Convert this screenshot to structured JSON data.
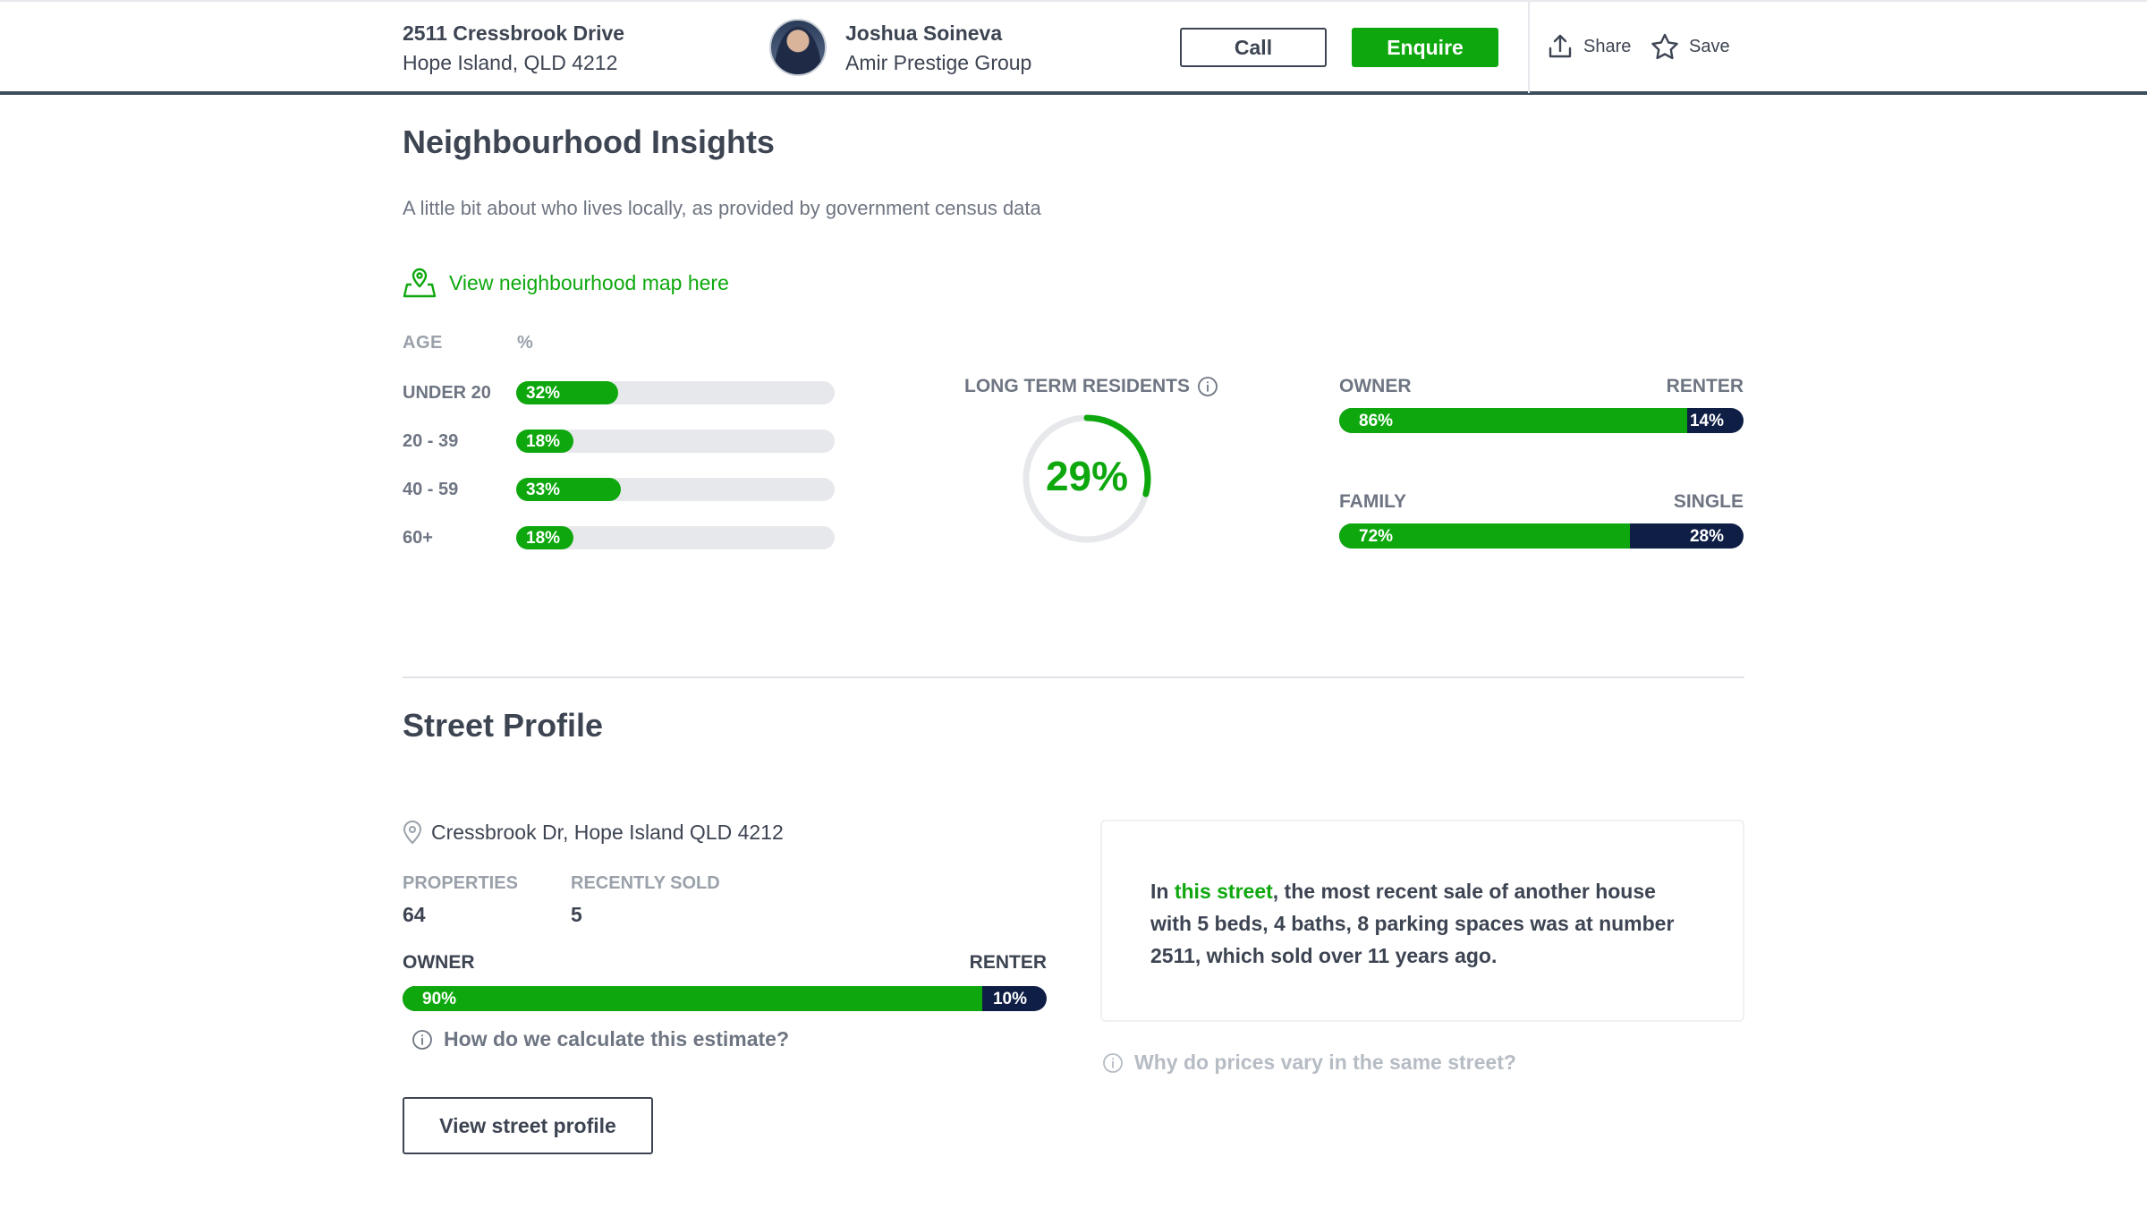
{
  "header": {
    "address_line1": "2511 Cressbrook Drive",
    "address_line2": "Hope Island, QLD 4212",
    "agent_name": "Joshua Soineva",
    "agency": "Amir Prestige Group",
    "call_label": "Call",
    "enquire_label": "Enquire",
    "share_label": "Share",
    "save_label": "Save"
  },
  "neighbourhood": {
    "title": "Neighbourhood Insights",
    "subtitle": "A little bit about who lives locally, as provided by government census data",
    "map_link": "View neighbourhood map here",
    "age_header": "AGE",
    "pct_header": "%",
    "age_groups": [
      {
        "label": "UNDER 20",
        "value": "32%",
        "fraction": 0.32
      },
      {
        "label": "20 - 39",
        "value": "18%",
        "fraction": 0.18
      },
      {
        "label": "40 - 59",
        "value": "33%",
        "fraction": 0.33
      },
      {
        "label": "60+",
        "value": "18%",
        "fraction": 0.18
      }
    ],
    "long_term_label": "LONG TERM RESIDENTS",
    "long_term_value": "29%",
    "long_term_fraction": 0.29,
    "owner_renter": {
      "left_label": "OWNER",
      "right_label": "RENTER",
      "left_value": "86%",
      "right_value": "14%",
      "left_fraction": 0.86
    },
    "family_single": {
      "left_label": "FAMILY",
      "right_label": "SINGLE",
      "left_value": "72%",
      "right_value": "28%",
      "left_fraction": 0.72
    }
  },
  "street": {
    "title": "Street Profile",
    "location": "Cressbrook Dr, Hope Island QLD 4212",
    "properties_label": "PROPERTIES",
    "properties_value": "64",
    "sold_label": "RECENTLY SOLD",
    "sold_value": "5",
    "owner_renter": {
      "left_label": "OWNER",
      "right_label": "RENTER",
      "left_value": "90%",
      "right_value": "10%",
      "left_fraction": 0.9
    },
    "calc_link": "How do we calculate this estimate?",
    "view_button": "View street profile",
    "card_prefix": "In ",
    "card_link": "this street",
    "card_text": ", the most recent sale of another house with 5 beds, 4 baths, 8 parking spaces was at number 2511, which sold over 11 years ago.",
    "why_link": "Why do prices vary in the same street?"
  },
  "colors": {
    "accent": "#0ea80e",
    "navy": "#0f1e45",
    "text": "#3d4452",
    "muted": "#9aa1ab"
  }
}
